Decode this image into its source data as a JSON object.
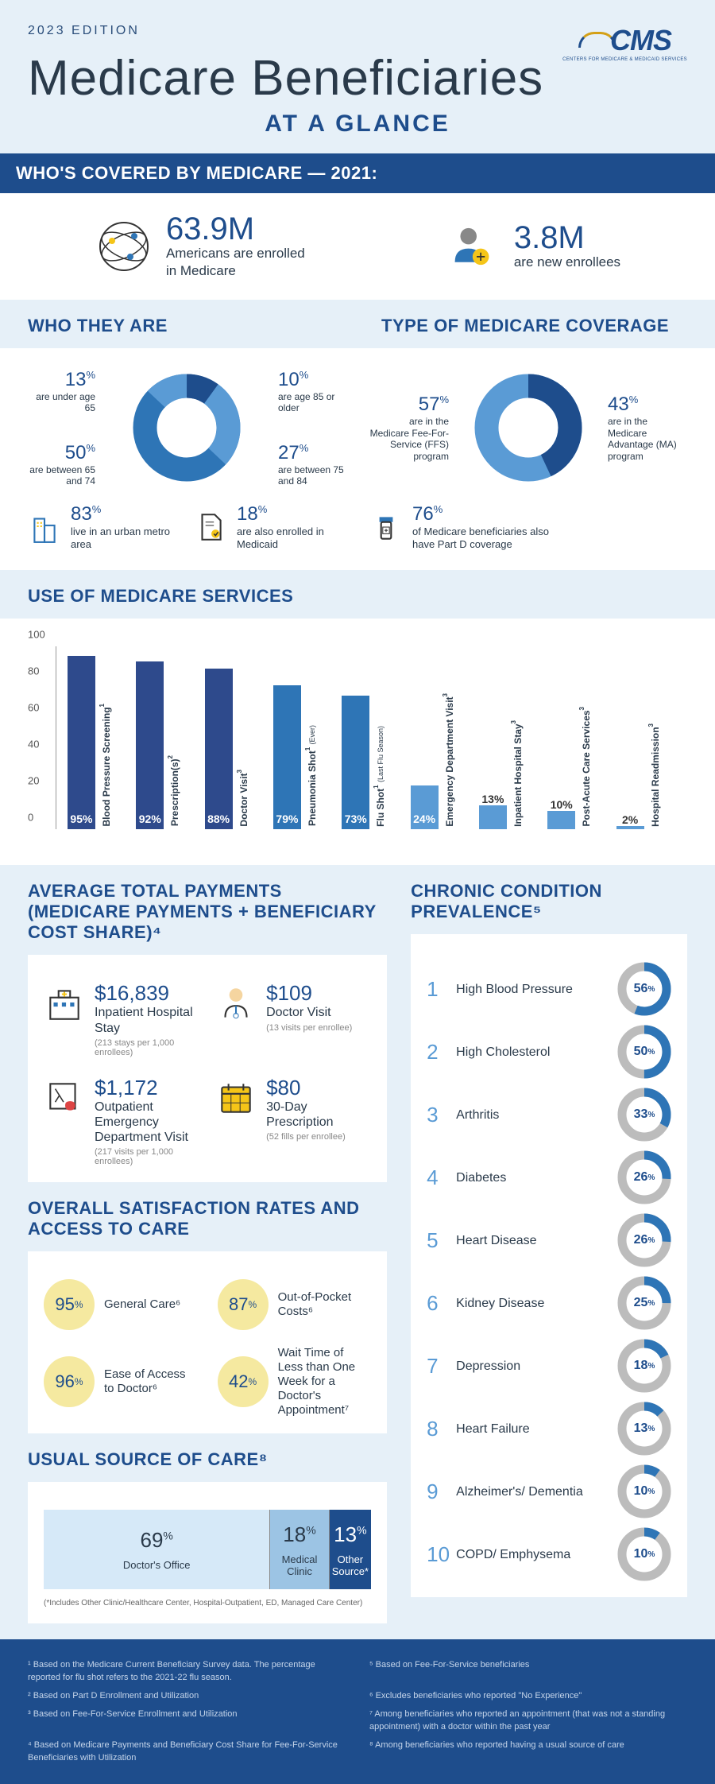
{
  "edition": "2023 EDITION",
  "logo": {
    "text": "CMS",
    "sub": "CENTERS FOR MEDICARE & MEDICAID SERVICES"
  },
  "title": {
    "main": "Medicare Beneficiaries",
    "sub": "AT A GLANCE"
  },
  "banner_who": "WHO'S COVERED BY MEDICARE — 2021:",
  "covered": {
    "enrolled": {
      "value": "63.9M",
      "desc": "Americans are enrolled in Medicare"
    },
    "new": {
      "value": "3.8M",
      "desc": "are new enrollees"
    }
  },
  "who_they_are": {
    "title": "WHO THEY ARE",
    "donut": {
      "segments": [
        {
          "pct": 13,
          "label": "are under age 65",
          "color": "#5a9bd5"
        },
        {
          "pct": 50,
          "label": "are between 65 and 74",
          "color": "#2e75b6"
        },
        {
          "pct": 27,
          "label": "are between 75 and 84",
          "color": "#5a9bd5"
        },
        {
          "pct": 10,
          "label": "are age 85 or older",
          "color": "#1e4d8c"
        }
      ],
      "bg": "#e6f0f8"
    },
    "urban": {
      "pct": "83",
      "desc": "live in an urban metro area"
    },
    "medicaid": {
      "pct": "18",
      "desc": "are also enrolled in Medicaid"
    }
  },
  "coverage": {
    "title": "TYPE OF MEDICARE COVERAGE",
    "donut": {
      "segments": [
        {
          "pct": 57,
          "label": "are in the Medicare Fee-For-Service (FFS) program",
          "color": "#5a9bd5"
        },
        {
          "pct": 43,
          "label": "are in the Medicare Advantage (MA) program",
          "color": "#1e4d8c"
        }
      ],
      "bg": "#e6f0f8"
    },
    "partd": {
      "pct": "76",
      "desc": "of Medicare beneficiaries also have Part D coverage"
    }
  },
  "services": {
    "title": "USE OF MEDICARE SERVICES",
    "ymax": 100,
    "yticks": [
      0,
      20,
      40,
      60,
      80,
      100
    ],
    "bars": [
      {
        "label": "Blood Pressure Screening",
        "sup": "1",
        "value": 95,
        "color": "#2e4a8c"
      },
      {
        "label": "Prescription(s)",
        "sup": "2",
        "value": 92,
        "color": "#2e4a8c"
      },
      {
        "label": "Doctor Visit",
        "sup": "3",
        "value": 88,
        "color": "#2e4a8c"
      },
      {
        "label": "Pneumonia Shot",
        "sup": "1",
        "sub": "(Ever)",
        "value": 79,
        "color": "#2e75b6"
      },
      {
        "label": "Flu Shot",
        "sup": "1",
        "sub": "(Last Flu Season)",
        "value": 73,
        "color": "#2e75b6"
      },
      {
        "label": "Emergency Department Visit",
        "sup": "3",
        "value": 24,
        "color": "#5a9bd5"
      },
      {
        "label": "Inpatient Hospital Stay",
        "sup": "3",
        "value": 13,
        "color": "#5a9bd5"
      },
      {
        "label": "Post-Acute Care Services",
        "sup": "3",
        "value": 10,
        "color": "#5a9bd5"
      },
      {
        "label": "Hospital Readmission",
        "sup": "3",
        "value": 2,
        "color": "#5a9bd5"
      }
    ]
  },
  "payments": {
    "title": "AVERAGE TOTAL PAYMENTS (MEDICARE PAYMENTS + BENEFICIARY COST SHARE)⁴",
    "items": [
      {
        "amt": "$16,839",
        "name": "Inpatient Hospital Stay",
        "sub": "(213 stays per 1,000 enrollees)"
      },
      {
        "amt": "$109",
        "name": "Doctor Visit",
        "sub": "(13 visits per enrollee)"
      },
      {
        "amt": "$1,172",
        "name": "Outpatient Emergency Department Visit",
        "sub": "(217 visits per 1,000 enrollees)"
      },
      {
        "amt": "$80",
        "name": "30-Day Prescription",
        "sub": "(52 fills per enrollee)"
      }
    ]
  },
  "chronic": {
    "title": "CHRONIC CONDITION PREVALENCE⁵",
    "items": [
      {
        "n": 1,
        "name": "High Blood Pressure",
        "pct": 56
      },
      {
        "n": 2,
        "name": "High Cholesterol",
        "pct": 50
      },
      {
        "n": 3,
        "name": "Arthritis",
        "pct": 33
      },
      {
        "n": 4,
        "name": "Diabetes",
        "pct": 26
      },
      {
        "n": 5,
        "name": "Heart Disease",
        "pct": 26
      },
      {
        "n": 6,
        "name": "Kidney Disease",
        "pct": 25
      },
      {
        "n": 7,
        "name": "Depression",
        "pct": 18
      },
      {
        "n": 8,
        "name": "Heart Failure",
        "pct": 13
      },
      {
        "n": 9,
        "name": "Alzheimer's/ Dementia",
        "pct": 10
      },
      {
        "n": 10,
        "name": "COPD/ Emphysema",
        "pct": 10
      }
    ],
    "ring_fill": "#2e75b6",
    "ring_bg": "#bcbcbc"
  },
  "satisfaction": {
    "title": "OVERALL SATISFACTION RATES AND ACCESS TO CARE",
    "items": [
      {
        "pct": "95",
        "label": "General Care⁶"
      },
      {
        "pct": "87",
        "label": "Out-of-Pocket Costs⁶"
      },
      {
        "pct": "96",
        "label": "Ease of Access to Doctor⁶"
      },
      {
        "pct": "42",
        "label": "Wait Time of Less than One Week for a Doctor's Appointment⁷"
      }
    ]
  },
  "source": {
    "title": "USUAL SOURCE OF CARE⁸",
    "segs": [
      {
        "pct": "69",
        "label": "Doctor's Office",
        "color": "#d6e9f8",
        "width": 69
      },
      {
        "pct": "18",
        "label": "Medical Clinic",
        "color": "#9cc4e4",
        "width": 18
      },
      {
        "pct": "13",
        "label": "Other Source*",
        "color": "#1e4d8c",
        "width": 13,
        "light": true
      }
    ],
    "note": "(*Includes Other Clinic/Healthcare Center, Hospital-Outpatient, ED, Managed Care Center)"
  },
  "footnotes": [
    "¹ Based on the Medicare Current Beneficiary Survey data. The percentage reported for flu shot refers to the 2021-22 flu season.",
    "⁵ Based on Fee-For-Service beneficiaries",
    "² Based on Part D Enrollment and Utilization",
    "⁶ Excludes beneficiaries who reported \"No Experience\"",
    "³ Based on Fee-For-Service Enrollment and Utilization",
    "⁷ Among beneficiaries who reported an appointment (that was not a standing appointment) with a doctor within the past year",
    "⁴ Based on Medicare Payments and Beneficiary Cost Share for Fee-For-Service Beneficiaries with Utilization",
    "⁸ Among beneficiaries who reported having a usual source of care"
  ]
}
